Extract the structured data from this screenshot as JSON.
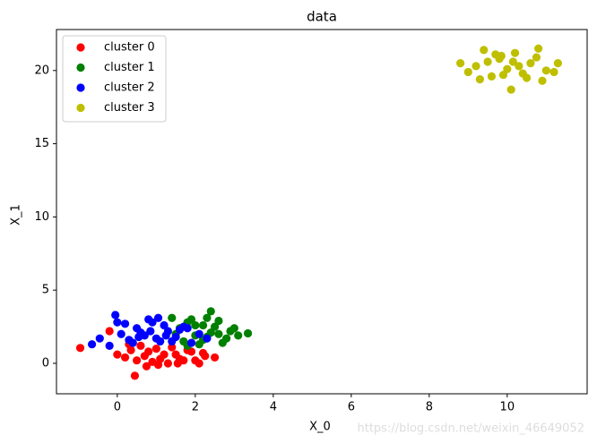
{
  "chart_data": {
    "type": "scatter",
    "title": "data",
    "x_label": "X_0",
    "y_label": "X_1",
    "xlim": [
      -1.56,
      12.05
    ],
    "ylim": [
      -2.08,
      22.8
    ],
    "xticks": [
      0,
      2,
      4,
      6,
      8,
      10
    ],
    "yticks": [
      0,
      5,
      10,
      15,
      20
    ],
    "grid": false,
    "legend": "upper left",
    "watermark": "https://blog.csdn.net/weixin_46649052",
    "series": [
      {
        "name": "cluster 0",
        "color": "#ff0000",
        "x": [
          -0.95,
          0.45,
          2.5,
          0.0,
          0.2,
          0.35,
          0.5,
          0.7,
          0.9,
          1.1,
          1.3,
          1.5,
          1.7,
          1.9,
          2.1,
          2.25,
          0.6,
          0.8,
          1.0,
          1.2,
          1.4,
          1.6,
          1.8,
          2.0,
          0.3,
          1.05,
          1.55,
          2.2,
          -0.2,
          0.75
        ],
        "values": [
          1.05,
          -0.85,
          0.4,
          0.6,
          0.4,
          0.9,
          0.2,
          0.5,
          0.1,
          0.3,
          0.0,
          0.6,
          0.2,
          0.8,
          0.0,
          0.5,
          1.2,
          0.8,
          1.0,
          0.6,
          1.1,
          0.3,
          0.9,
          0.2,
          1.3,
          -0.1,
          0.0,
          0.7,
          2.2,
          -0.2
        ]
      },
      {
        "name": "cluster 1",
        "color": "#008000",
        "x": [
          3.35,
          2.4,
          1.4,
          1.6,
          1.8,
          2.0,
          2.2,
          2.4,
          2.6,
          2.8,
          3.0,
          1.7,
          1.9,
          2.1,
          2.3,
          2.5,
          2.7,
          2.9,
          3.1,
          1.5,
          2.0,
          2.3,
          2.6,
          2.2,
          1.8
        ],
        "values": [
          2.05,
          3.55,
          3.1,
          2.4,
          2.8,
          1.9,
          2.6,
          2.1,
          2.9,
          1.7,
          2.4,
          1.5,
          3.0,
          1.3,
          1.8,
          2.5,
          1.4,
          2.2,
          1.9,
          2.0,
          2.6,
          3.1,
          2.0,
          1.6,
          1.2
        ]
      },
      {
        "name": "cluster 2",
        "color": "#0000ff",
        "x": [
          -0.65,
          -0.45,
          -0.2,
          -0.05,
          0.1,
          0.3,
          0.5,
          0.7,
          0.9,
          1.1,
          1.3,
          1.5,
          1.7,
          1.9,
          2.1,
          2.3,
          0.2,
          0.4,
          0.6,
          0.8,
          1.0,
          1.2,
          1.4,
          1.6,
          0.0,
          0.85,
          1.25,
          1.8,
          0.55,
          1.05
        ],
        "values": [
          1.3,
          1.7,
          1.2,
          3.3,
          2.0,
          1.6,
          2.4,
          1.9,
          2.8,
          1.5,
          2.2,
          1.8,
          2.5,
          1.4,
          2.0,
          1.7,
          2.7,
          1.4,
          2.1,
          3.0,
          1.7,
          2.6,
          1.5,
          2.3,
          2.8,
          2.2,
          1.9,
          2.4,
          1.8,
          3.1
        ]
      },
      {
        "name": "cluster 3",
        "color": "#bfbf00",
        "x": [
          8.8,
          9.0,
          9.2,
          9.4,
          9.6,
          9.8,
          10.0,
          10.2,
          10.4,
          10.6,
          10.8,
          11.0,
          11.2,
          11.3,
          9.3,
          9.5,
          9.7,
          9.9,
          10.1,
          10.3,
          10.5,
          10.75,
          10.9,
          10.15,
          9.85
        ],
        "values": [
          20.5,
          19.9,
          20.3,
          21.4,
          19.6,
          20.8,
          20.1,
          21.2,
          19.8,
          20.5,
          21.5,
          20.0,
          19.9,
          20.5,
          19.4,
          20.6,
          21.1,
          19.7,
          18.7,
          20.3,
          19.5,
          20.9,
          19.3,
          20.6,
          21.0
        ]
      }
    ]
  }
}
